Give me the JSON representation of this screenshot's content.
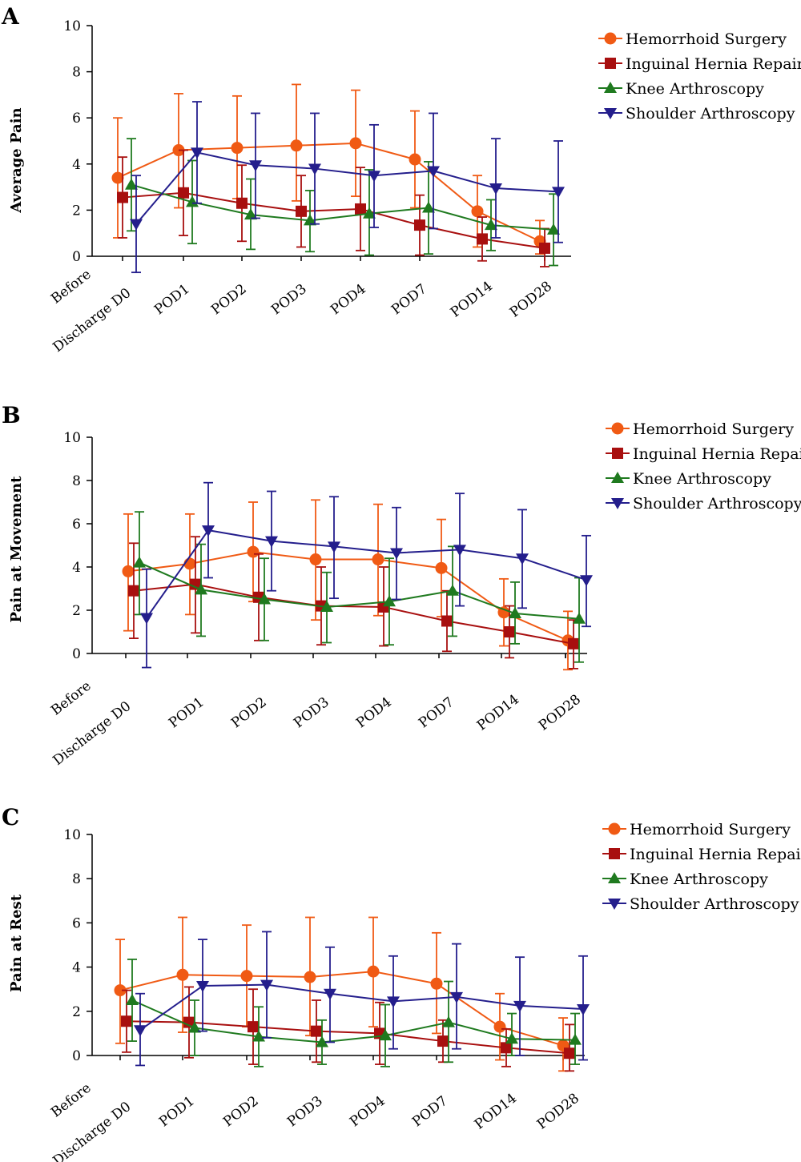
{
  "colors": {
    "Hemorrhoid Surgery": "#f05a14",
    "Inguinal Hernia Repair": "#a80f0f",
    "Knee Arthroscopy": "#1f7a1f",
    "Shoulder Arthroscopy": "#241e8c"
  },
  "chart_data": [
    {
      "panel_letter": "A",
      "type": "line",
      "ylabel": "Average Pain",
      "ylim": [
        0,
        10
      ],
      "yticks": [
        "0",
        "2",
        "4",
        "6",
        "8",
        "10"
      ],
      "categories": [
        [
          "Before",
          "Discharge D0"
        ],
        [
          "POD1"
        ],
        [
          "POD2"
        ],
        [
          "POD3"
        ],
        [
          "POD4"
        ],
        [
          "POD7"
        ],
        [
          "POD14"
        ],
        [
          "POD28"
        ]
      ],
      "error_bars": true,
      "legend_position": "top-right",
      "series": [
        {
          "name": "Hemorrhoid Surgery",
          "marker": "circle",
          "values": [
            3.4,
            4.6,
            4.7,
            4.8,
            4.9,
            4.2,
            1.95,
            0.65
          ],
          "err_low": [
            0.8,
            2.1,
            2.5,
            2.4,
            2.6,
            2.1,
            0.4,
            0.1
          ],
          "err_high": [
            6.0,
            7.05,
            6.95,
            7.45,
            7.2,
            6.3,
            3.5,
            1.55
          ]
        },
        {
          "name": "Inguinal Hernia Repair",
          "marker": "square",
          "values": [
            2.55,
            2.75,
            2.3,
            1.95,
            2.05,
            1.35,
            0.75,
            0.35
          ],
          "err_low": [
            0.8,
            0.9,
            0.65,
            0.4,
            0.25,
            0.05,
            -0.2,
            -0.45
          ],
          "err_high": [
            4.3,
            4.6,
            3.95,
            3.5,
            3.85,
            2.65,
            1.7,
            1.2
          ]
        },
        {
          "name": "Knee Arthroscopy",
          "marker": "triangle-up",
          "values": [
            3.1,
            2.35,
            1.8,
            1.55,
            1.85,
            2.1,
            1.35,
            1.15
          ],
          "err_low": [
            1.1,
            0.55,
            0.3,
            0.2,
            0.05,
            0.1,
            0.25,
            -0.4
          ],
          "err_high": [
            5.1,
            4.15,
            3.35,
            2.85,
            3.75,
            4.1,
            2.45,
            2.7
          ]
        },
        {
          "name": "Shoulder Arthroscopy",
          "marker": "triangle-down",
          "values": [
            1.4,
            4.5,
            3.95,
            3.8,
            3.5,
            3.7,
            2.95,
            2.8
          ],
          "err_low": [
            -0.7,
            2.3,
            1.65,
            1.4,
            1.25,
            1.2,
            0.8,
            0.6
          ],
          "err_high": [
            3.5,
            6.7,
            6.2,
            6.2,
            5.7,
            6.2,
            5.1,
            5.0
          ]
        }
      ]
    },
    {
      "panel_letter": "B",
      "type": "line",
      "ylabel": "Pain at Movement",
      "ylim": [
        0,
        10
      ],
      "yticks": [
        "0",
        "2",
        "4",
        "6",
        "8",
        "10"
      ],
      "categories": [
        [
          "Before",
          "Discharge D0"
        ],
        [
          "POD1"
        ],
        [
          "POD2"
        ],
        [
          "POD3"
        ],
        [
          "POD4"
        ],
        [
          "POD7"
        ],
        [
          "POD14"
        ],
        [
          "POD28"
        ]
      ],
      "error_bars": true,
      "legend_position": "top-right",
      "series": [
        {
          "name": "Hemorrhoid Surgery",
          "marker": "circle",
          "values": [
            3.8,
            4.15,
            4.7,
            4.35,
            4.35,
            3.95,
            1.9,
            0.6
          ],
          "err_low": [
            1.05,
            1.8,
            2.4,
            1.55,
            1.75,
            1.7,
            0.35,
            -0.75
          ],
          "err_high": [
            6.45,
            6.45,
            7.0,
            7.1,
            6.9,
            6.2,
            3.45,
            1.95
          ]
        },
        {
          "name": "Inguinal Hernia Repair",
          "marker": "square",
          "values": [
            2.9,
            3.2,
            2.6,
            2.2,
            2.15,
            1.5,
            1.0,
            0.45
          ],
          "err_low": [
            0.7,
            0.95,
            0.6,
            0.4,
            0.35,
            0.1,
            -0.2,
            -0.7
          ],
          "err_high": [
            5.1,
            5.4,
            4.6,
            4.0,
            4.0,
            2.9,
            2.2,
            1.55
          ]
        },
        {
          "name": "Knee Arthroscopy",
          "marker": "triangle-up",
          "values": [
            4.2,
            2.95,
            2.5,
            2.15,
            2.4,
            2.9,
            1.85,
            1.6
          ],
          "err_low": [
            1.8,
            0.8,
            0.6,
            0.5,
            0.4,
            0.8,
            0.45,
            -0.4
          ],
          "err_high": [
            6.55,
            5.05,
            4.4,
            3.75,
            4.4,
            4.95,
            3.3,
            3.5
          ]
        },
        {
          "name": "Shoulder Arthroscopy",
          "marker": "triangle-down",
          "values": [
            1.65,
            5.7,
            5.2,
            4.95,
            4.65,
            4.8,
            4.4,
            3.4
          ],
          "err_low": [
            -0.65,
            3.5,
            2.9,
            2.55,
            2.5,
            2.2,
            2.1,
            1.25
          ],
          "err_high": [
            3.9,
            7.9,
            7.5,
            7.25,
            6.75,
            7.4,
            6.65,
            5.45
          ]
        }
      ]
    },
    {
      "panel_letter": "C",
      "type": "line",
      "ylabel": "Pain at Rest",
      "ylim": [
        0,
        10
      ],
      "yticks": [
        "0",
        "2",
        "4",
        "6",
        "8",
        "10"
      ],
      "categories": [
        [
          "Before",
          "Discharge D0"
        ],
        [
          "POD1"
        ],
        [
          "POD2"
        ],
        [
          "POD3"
        ],
        [
          "POD4"
        ],
        [
          "POD7"
        ],
        [
          "POD14"
        ],
        [
          "POD28"
        ]
      ],
      "error_bars": true,
      "legend_position": "top-right",
      "series": [
        {
          "name": "Hemorrhoid Surgery",
          "marker": "circle",
          "values": [
            2.95,
            3.65,
            3.6,
            3.55,
            3.8,
            3.25,
            1.3,
            0.45
          ],
          "err_low": [
            0.55,
            1.05,
            1.3,
            0.9,
            1.3,
            1.0,
            -0.2,
            -0.7
          ],
          "err_high": [
            5.25,
            6.25,
            5.9,
            6.25,
            6.25,
            5.55,
            2.8,
            1.7
          ]
        },
        {
          "name": "Inguinal Hernia Repair",
          "marker": "square",
          "values": [
            1.55,
            1.5,
            1.3,
            1.1,
            1.0,
            0.65,
            0.35,
            0.1
          ],
          "err_low": [
            0.15,
            -0.1,
            -0.4,
            -0.3,
            -0.4,
            -0.3,
            -0.5,
            -0.7
          ],
          "err_high": [
            2.95,
            3.1,
            3.0,
            2.5,
            2.4,
            1.6,
            1.2,
            1.4
          ]
        },
        {
          "name": "Knee Arthroscopy",
          "marker": "triangle-up",
          "values": [
            2.5,
            1.25,
            0.85,
            0.6,
            0.9,
            1.5,
            0.75,
            0.7
          ],
          "err_low": [
            0.65,
            0.0,
            -0.5,
            -0.4,
            -0.5,
            -0.3,
            0.0,
            -0.4
          ],
          "err_high": [
            4.35,
            2.5,
            2.2,
            1.6,
            2.3,
            3.35,
            1.9,
            1.9
          ]
        },
        {
          "name": "Shoulder Arthroscopy",
          "marker": "triangle-down",
          "values": [
            1.15,
            3.15,
            3.2,
            2.8,
            2.45,
            2.65,
            2.25,
            2.1
          ],
          "err_low": [
            -0.45,
            1.1,
            0.8,
            0.6,
            0.3,
            0.3,
            0.0,
            -0.2
          ],
          "err_high": [
            2.8,
            5.25,
            5.6,
            4.9,
            4.5,
            5.05,
            4.45,
            4.5
          ]
        }
      ]
    }
  ]
}
